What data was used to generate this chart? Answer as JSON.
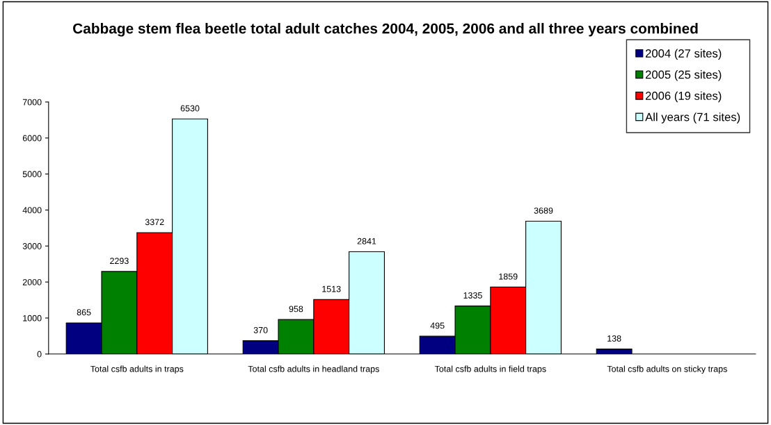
{
  "chart_data": {
    "type": "bar",
    "title": "Cabbage stem flea beetle total adult catches 2004, 2005, 2006 and all three years combined",
    "categories": [
      "Total csfb adults in traps",
      "Total csfb adults in headland traps",
      "Total csfb adults in field traps",
      "Total csfb adults on sticky traps"
    ],
    "series": [
      {
        "name": "2004 (27 sites)",
        "color": "#000080",
        "values": [
          865,
          370,
          495,
          138
        ]
      },
      {
        "name": "2005 (25 sites)",
        "color": "#008000",
        "values": [
          2293,
          958,
          1335,
          null
        ]
      },
      {
        "name": "2006 (19 sites)",
        "color": "#ff0000",
        "values": [
          3372,
          1513,
          1859,
          null
        ]
      },
      {
        "name": "All years (71 sites)",
        "color": "#ccffff",
        "values": [
          6530,
          2841,
          3689,
          null
        ]
      }
    ],
    "ylim": [
      0,
      7000
    ],
    "yticks": [
      0,
      1000,
      2000,
      3000,
      4000,
      5000,
      6000,
      7000
    ],
    "data_labels": true,
    "grid": false,
    "legend": "top right"
  }
}
